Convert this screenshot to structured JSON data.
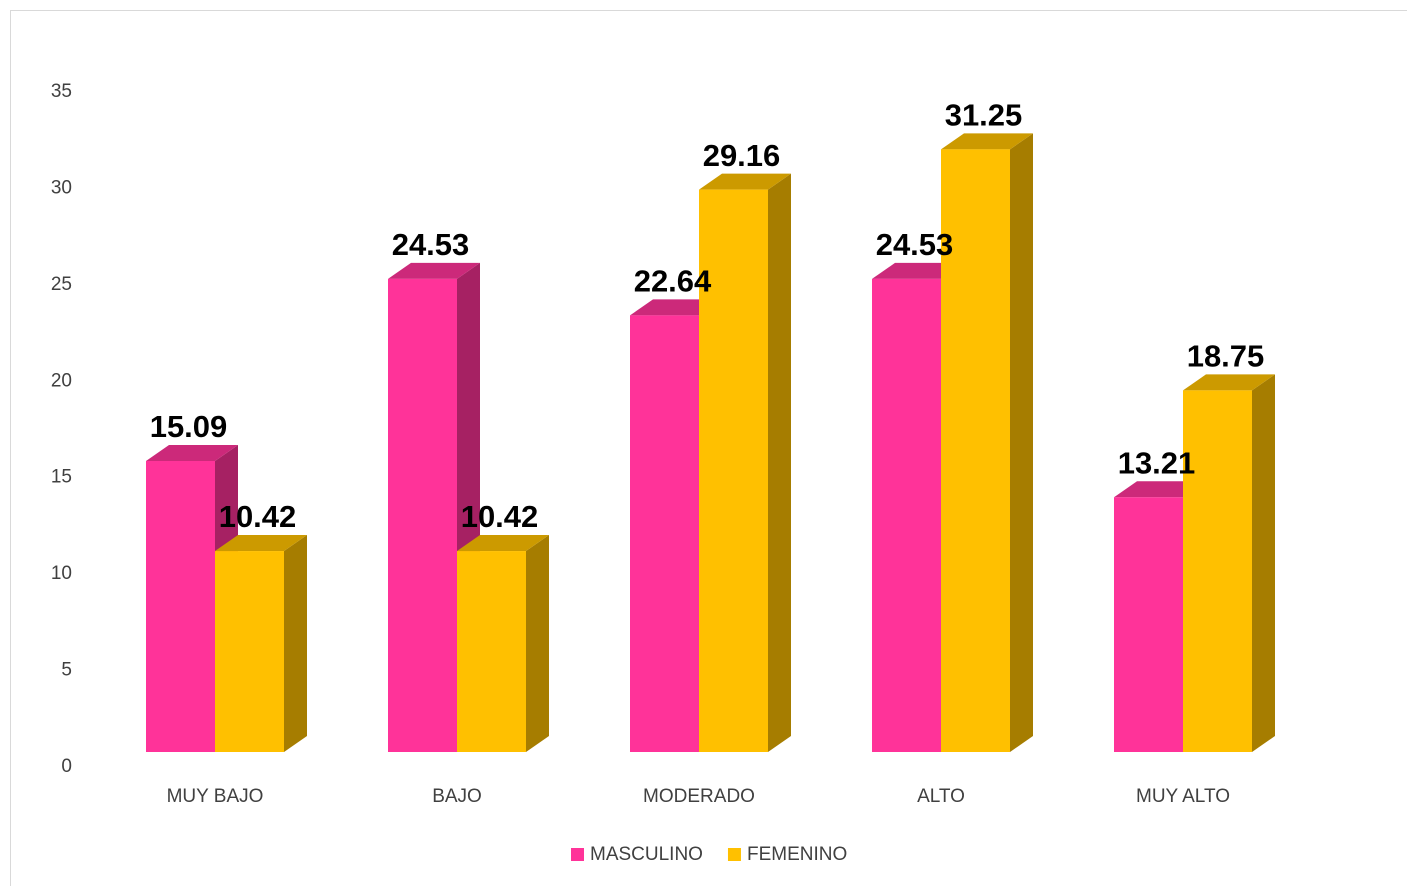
{
  "chart_data": {
    "type": "bar3d",
    "categories": [
      "MUY BAJO",
      "BAJO",
      "MODERADO",
      "ALTO",
      "MUY ALTO"
    ],
    "series": [
      {
        "name": "MASCULINO",
        "color": "#ff3399",
        "values": [
          15.09,
          24.53,
          22.64,
          24.53,
          13.21
        ]
      },
      {
        "name": "FEMENINO",
        "color": "#ffc000",
        "values": [
          10.42,
          10.42,
          29.16,
          31.25,
          18.75
        ]
      }
    ],
    "ylim": [
      0,
      35
    ],
    "yticks": [
      0,
      5,
      10,
      15,
      20,
      25,
      30,
      35
    ],
    "grid": false,
    "legend": "bottom"
  }
}
